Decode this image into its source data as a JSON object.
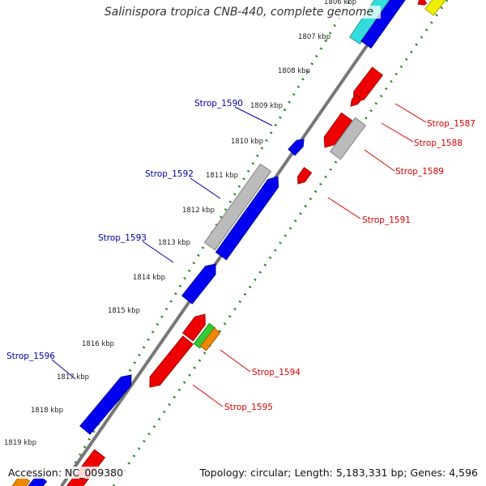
{
  "title": "Salinispora tropica CNB-440, complete genome",
  "accession_label": "Accession: NC_009380",
  "summary": "Topology: circular; Length: 5,183,331 bp; Genes: 4,596",
  "colors": {
    "forward_label": "#0000aa",
    "reverse_label": "#dd0000",
    "tick_dots": "#228822",
    "backbone": "#777777",
    "blue_gene": "#0000ee",
    "red_gene": "#ee0000",
    "gray_gene": "#bbbbbb",
    "cyan_gene": "#33dddd",
    "yellow_gene": "#eeee00",
    "green_gene": "#33cc33",
    "orange_gene": "#ee8800"
  },
  "kbp_ticks": [
    "1806 kbp",
    "1807 kbp",
    "1808 kbp",
    "1809 kbp",
    "1810 kbp",
    "1811 kbp",
    "1812 kbp",
    "1813 kbp",
    "1814 kbp",
    "1815 kbp",
    "1816 kbp",
    "1817 kbp",
    "1818 kbp",
    "1819 kbp"
  ],
  "forward_labels": [
    "Strop_1590",
    "Strop_1592",
    "Strop_1593",
    "Strop_1596"
  ],
  "reverse_labels": [
    "Strop_1587",
    "Strop_1588",
    "Strop_1589",
    "Strop_1591",
    "Strop_1594",
    "Strop_1595"
  ],
  "gene_icons": [
    {
      "name": "gene-cyan-top",
      "color": "cyan_gene"
    },
    {
      "name": "gene-blue-top",
      "color": "blue_gene"
    },
    {
      "name": "gene-red-top",
      "color": "red_gene"
    },
    {
      "name": "gene-yellow-top",
      "color": "yellow_gene"
    },
    {
      "name": "gene-red-1587",
      "color": "red_gene"
    },
    {
      "name": "gene-red-1588-small",
      "color": "red_gene"
    },
    {
      "name": "gene-red-1588",
      "color": "red_gene"
    },
    {
      "name": "gene-gray-1589",
      "color": "gray_gene"
    },
    {
      "name": "gene-blue-1590",
      "color": "blue_gene"
    },
    {
      "name": "gene-red-1591",
      "color": "red_gene"
    },
    {
      "name": "gene-gray-1592",
      "color": "gray_gene"
    },
    {
      "name": "gene-blue-1592",
      "color": "blue_gene"
    },
    {
      "name": "gene-blue-1593",
      "color": "blue_gene"
    },
    {
      "name": "gene-red-1594a",
      "color": "red_gene"
    },
    {
      "name": "gene-green-1594",
      "color": "green_gene"
    },
    {
      "name": "gene-orange-1594",
      "color": "orange_gene"
    },
    {
      "name": "gene-red-1595",
      "color": "red_gene"
    },
    {
      "name": "gene-blue-1596",
      "color": "blue_gene"
    },
    {
      "name": "gene-red-bottom",
      "color": "red_gene"
    },
    {
      "name": "gene-orange-bottom",
      "color": "orange_gene"
    },
    {
      "name": "gene-blue-bottom",
      "color": "blue_gene"
    }
  ]
}
